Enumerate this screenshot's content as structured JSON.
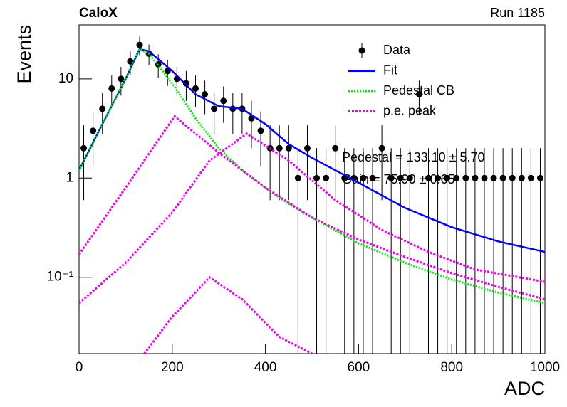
{
  "chart_data": {
    "type": "scatter",
    "title": "CaloX",
    "subtitle": "Run 1185",
    "x_label": "ADC",
    "y_label": "Events",
    "xlim": [
      0,
      1000
    ],
    "xticks": [
      0,
      200,
      400,
      600,
      800,
      1000
    ],
    "ylim": [
      0.017,
      35
    ],
    "yticks": [
      {
        "value": 0.1,
        "label": "10⁻¹"
      },
      1,
      10
    ],
    "log_y": true,
    "legend": "top-right",
    "annotations": [
      "Pedestal = 133.10 ± 5.70",
      "Gain = 75.90 ± 0.65"
    ],
    "series": [
      {
        "name": "Data",
        "color": "#000000",
        "style": "points",
        "x": [
          10,
          30,
          50,
          70,
          90,
          110,
          130,
          150,
          170,
          190,
          210,
          230,
          250,
          270,
          290,
          310,
          330,
          350,
          370,
          390,
          410,
          430,
          450,
          470,
          490,
          510,
          530,
          550,
          570,
          590,
          610,
          630,
          650,
          670,
          690,
          710,
          730,
          750,
          770,
          790,
          810,
          830,
          850,
          870,
          890,
          910,
          930,
          950,
          970,
          990
        ],
        "values": [
          2,
          3,
          5,
          8,
          10,
          15,
          22,
          18,
          14,
          12,
          10,
          9,
          8,
          7,
          5,
          6,
          5,
          5,
          4,
          3,
          2,
          2,
          2,
          1,
          2,
          1,
          1,
          2,
          1,
          1,
          1,
          1,
          2,
          1,
          1,
          1,
          7,
          1,
          1,
          1,
          1,
          1,
          1,
          1,
          1,
          1,
          1,
          1,
          1,
          1
        ],
        "errors": [
          1.4,
          1.7,
          2.2,
          2.8,
          3.2,
          3.9,
          4.7,
          4.2,
          3.7,
          3.5,
          3.2,
          3,
          2.8,
          2.6,
          2.2,
          2.4,
          2.2,
          2.2,
          2,
          1.7,
          1.4,
          1.4,
          1.4,
          1,
          1.4,
          1,
          1,
          1.4,
          1,
          1,
          1,
          1,
          1.4,
          1,
          1,
          1,
          2.6,
          1,
          1,
          1,
          1,
          1,
          1,
          1,
          1,
          1,
          1,
          1,
          1,
          1
        ]
      },
      {
        "name": "Fit",
        "color": "#0000ff",
        "style": "solid",
        "x": [
          0,
          50,
          100,
          130,
          150,
          200,
          250,
          300,
          350,
          400,
          450,
          500,
          600,
          700,
          800,
          900,
          1000
        ],
        "values": [
          1.2,
          3.5,
          10,
          20,
          19,
          12,
          7,
          5.3,
          5,
          3.5,
          2.2,
          1.6,
          0.9,
          0.5,
          0.32,
          0.23,
          0.18
        ]
      },
      {
        "name": "Pedestal CB",
        "color": "#00ee00",
        "style": "dotted",
        "x": [
          0,
          50,
          100,
          130,
          150,
          200,
          250,
          300,
          350,
          400,
          450,
          500,
          600,
          700,
          800,
          900,
          1000
        ],
        "values": [
          1.2,
          3.5,
          10,
          20,
          18,
          9,
          4,
          2,
          1.2,
          0.8,
          0.55,
          0.4,
          0.22,
          0.14,
          0.095,
          0.07,
          0.055
        ]
      },
      {
        "name": "p.e. peak",
        "color": "#ee00ee",
        "style": "dashed",
        "x": [
          0,
          100,
          205,
          300,
          400,
          500,
          600,
          700,
          800,
          900,
          1000,
          null,
          0,
          100,
          200,
          280,
          360,
          450,
          550,
          650,
          750,
          850,
          1000,
          null,
          140,
          200,
          280,
          350,
          430,
          500
        ],
        "values": [
          0.17,
          0.8,
          4.2,
          1.8,
          0.8,
          0.4,
          0.24,
          0.16,
          0.11,
          0.08,
          0.06,
          null,
          0.055,
          0.14,
          0.45,
          1.5,
          2.8,
          1.5,
          0.6,
          0.3,
          0.18,
          0.12,
          0.09,
          null,
          0.017,
          0.04,
          0.1,
          0.06,
          0.025,
          0.017
        ]
      }
    ]
  }
}
